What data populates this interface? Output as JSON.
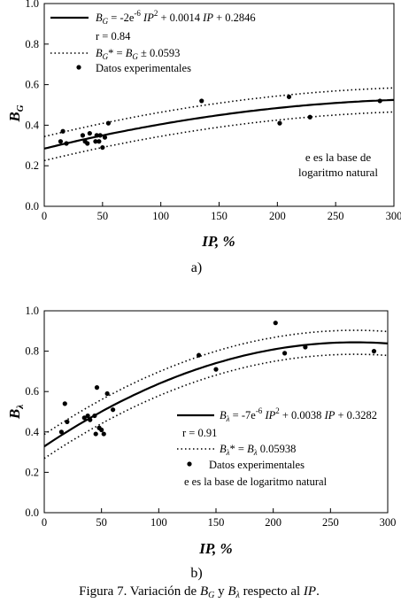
{
  "caption": "Figura 7. Variación de B_G y B_λ respecto al IP.",
  "chart_data": [
    {
      "type": "scatter",
      "panel_label": "a)",
      "xlabel": "IP, %",
      "ylabel": "B_G",
      "xlim": [
        0,
        300
      ],
      "ylim": [
        0,
        1.0
      ],
      "xticks": [
        0,
        50,
        100,
        150,
        200,
        250,
        300
      ],
      "yticks": [
        0.0,
        0.2,
        0.4,
        0.6,
        0.8,
        1.0
      ],
      "grid": false,
      "legend": {
        "placement": "top-left",
        "entries": [
          {
            "style": "solid",
            "text": "B_G = -2e^-6 IP^2 + 0.0014 IP + 0.2846"
          },
          {
            "style": "none",
            "text": "r = 0.84"
          },
          {
            "style": "dotted",
            "text": "B_G* = B_G ± 0.0593"
          },
          {
            "style": "marker",
            "text": "Datos experimentales"
          }
        ]
      },
      "annotation": [
        "e es la base de",
        "logaritmo natural"
      ],
      "fit": {
        "a": -2e-06,
        "b": 0.0014,
        "c": 0.2846,
        "band": 0.0593,
        "x_range": [
          0,
          300
        ]
      },
      "points": [
        {
          "x": 14,
          "y": 0.32
        },
        {
          "x": 16,
          "y": 0.37
        },
        {
          "x": 19,
          "y": 0.31
        },
        {
          "x": 33,
          "y": 0.35
        },
        {
          "x": 35,
          "y": 0.32
        },
        {
          "x": 37,
          "y": 0.31
        },
        {
          "x": 39,
          "y": 0.36
        },
        {
          "x": 44,
          "y": 0.32
        },
        {
          "x": 45,
          "y": 0.35
        },
        {
          "x": 47,
          "y": 0.32
        },
        {
          "x": 48,
          "y": 0.35
        },
        {
          "x": 50,
          "y": 0.29
        },
        {
          "x": 52,
          "y": 0.34
        },
        {
          "x": 55,
          "y": 0.41
        },
        {
          "x": 135,
          "y": 0.52
        },
        {
          "x": 202,
          "y": 0.41
        },
        {
          "x": 210,
          "y": 0.54
        },
        {
          "x": 228,
          "y": 0.44
        },
        {
          "x": 288,
          "y": 0.52
        }
      ]
    },
    {
      "type": "scatter",
      "panel_label": "b)",
      "xlabel": "IP, %",
      "ylabel": "B_λ",
      "xlim": [
        0,
        300
      ],
      "ylim": [
        0,
        1.0
      ],
      "xticks": [
        0,
        50,
        100,
        150,
        200,
        250,
        300
      ],
      "yticks": [
        0.0,
        0.2,
        0.4,
        0.6,
        0.8,
        1.0
      ],
      "grid": false,
      "legend": {
        "placement": "bottom-right",
        "entries": [
          {
            "style": "solid",
            "text": "B_λ = -7e^-6 IP^2 + 0.0038 IP + 0.3282"
          },
          {
            "style": "none",
            "text": "r = 0.91"
          },
          {
            "style": "dotted",
            "text": "B_λ* = B_λ    0.05938"
          },
          {
            "style": "marker",
            "text": "Datos experimentales"
          },
          {
            "style": "none",
            "text": "e    es la base de logaritmo natural"
          }
        ]
      },
      "fit": {
        "a": -7e-06,
        "b": 0.0038,
        "c": 0.3282,
        "band": 0.05938,
        "x_range": [
          0,
          300
        ]
      },
      "points": [
        {
          "x": 15,
          "y": 0.4
        },
        {
          "x": 18,
          "y": 0.54
        },
        {
          "x": 20,
          "y": 0.45
        },
        {
          "x": 35,
          "y": 0.47
        },
        {
          "x": 38,
          "y": 0.48
        },
        {
          "x": 40,
          "y": 0.46
        },
        {
          "x": 44,
          "y": 0.48
        },
        {
          "x": 45,
          "y": 0.39
        },
        {
          "x": 46,
          "y": 0.62
        },
        {
          "x": 48,
          "y": 0.42
        },
        {
          "x": 50,
          "y": 0.41
        },
        {
          "x": 52,
          "y": 0.39
        },
        {
          "x": 55,
          "y": 0.59
        },
        {
          "x": 60,
          "y": 0.51
        },
        {
          "x": 135,
          "y": 0.78
        },
        {
          "x": 150,
          "y": 0.71
        },
        {
          "x": 202,
          "y": 0.94
        },
        {
          "x": 210,
          "y": 0.79
        },
        {
          "x": 228,
          "y": 0.82
        },
        {
          "x": 288,
          "y": 0.8
        }
      ]
    }
  ]
}
